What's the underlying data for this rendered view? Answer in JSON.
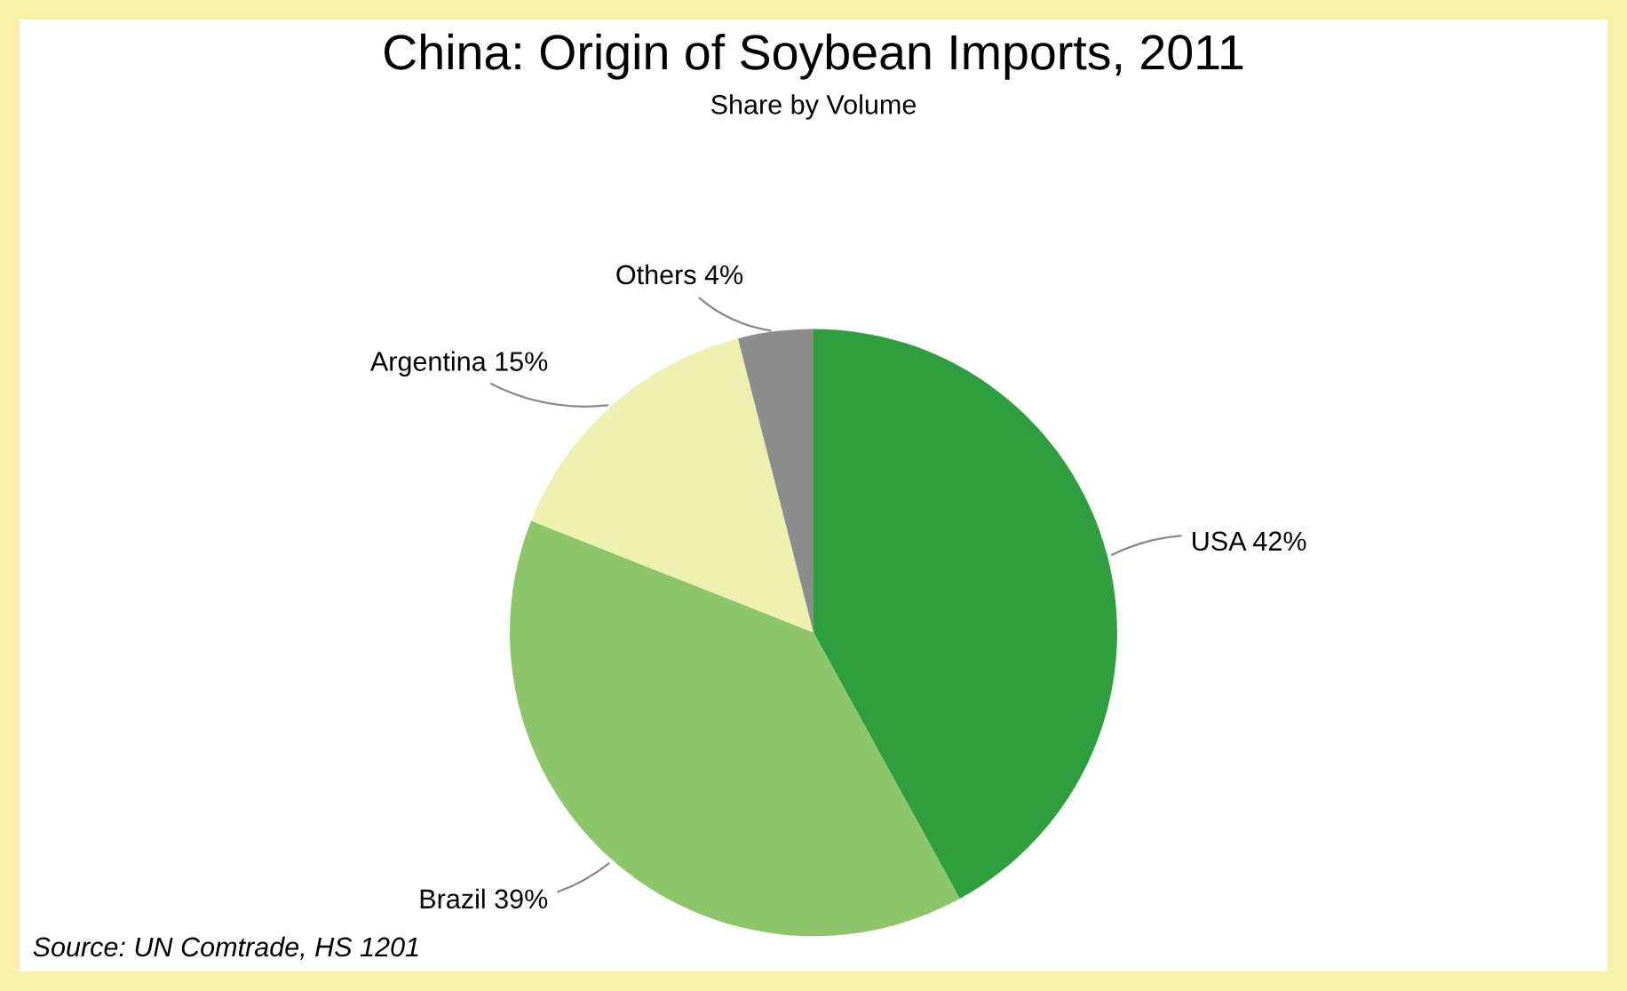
{
  "chart_data": {
    "type": "pie",
    "title": "China: Origin of Soybean Imports, 2011",
    "subtitle": "Share by Volume",
    "categories": [
      "USA",
      "Brazil",
      "Argentina",
      "Others"
    ],
    "values": [
      42,
      39,
      15,
      4
    ],
    "value_labels": [
      "42%",
      "39%",
      "15%",
      "4%"
    ],
    "colors": [
      "#2e9e3e",
      "#8cc56a",
      "#eef0b0",
      "#8c8c8c"
    ],
    "annotations": [
      "Source: UN Comtrade, HS 1201"
    ]
  }
}
